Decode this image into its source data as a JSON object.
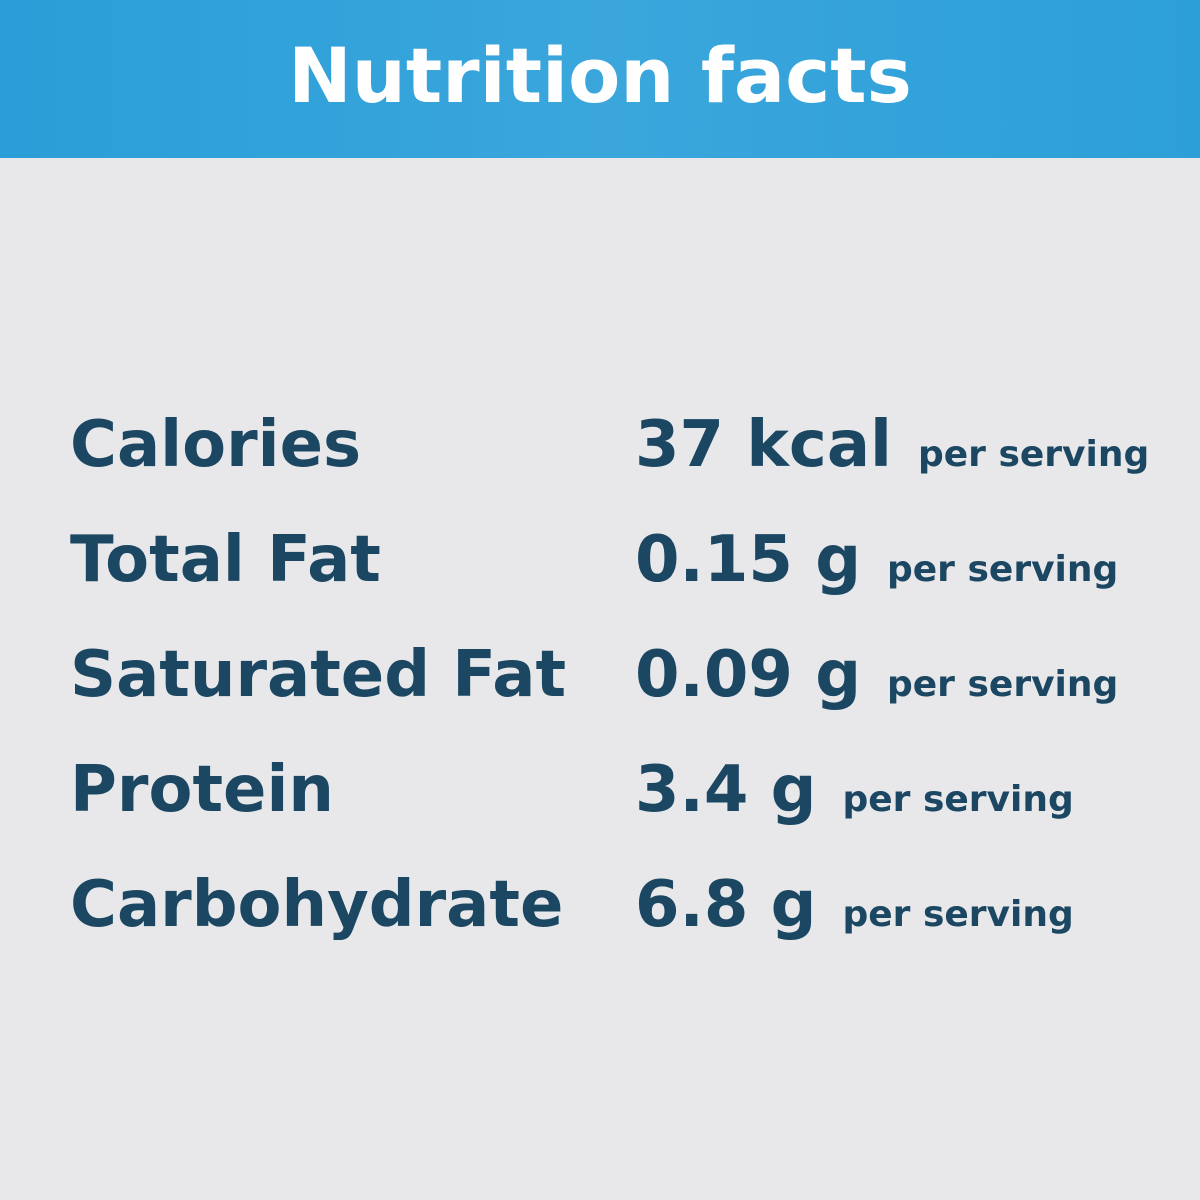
{
  "header": {
    "title": "Nutrition facts"
  },
  "rows": [
    {
      "label": "Calories",
      "amount": "37 kcal",
      "note": "per serving"
    },
    {
      "label": "Total Fat",
      "amount": "0.15 g",
      "note": "per serving"
    },
    {
      "label": "Saturated Fat",
      "amount": "0.09 g",
      "note": "per serving"
    },
    {
      "label": "Protein",
      "amount": "3.4 g",
      "note": "per serving"
    },
    {
      "label": "Carbohydrate",
      "amount": "6.8 g",
      "note": "per serving"
    }
  ]
}
